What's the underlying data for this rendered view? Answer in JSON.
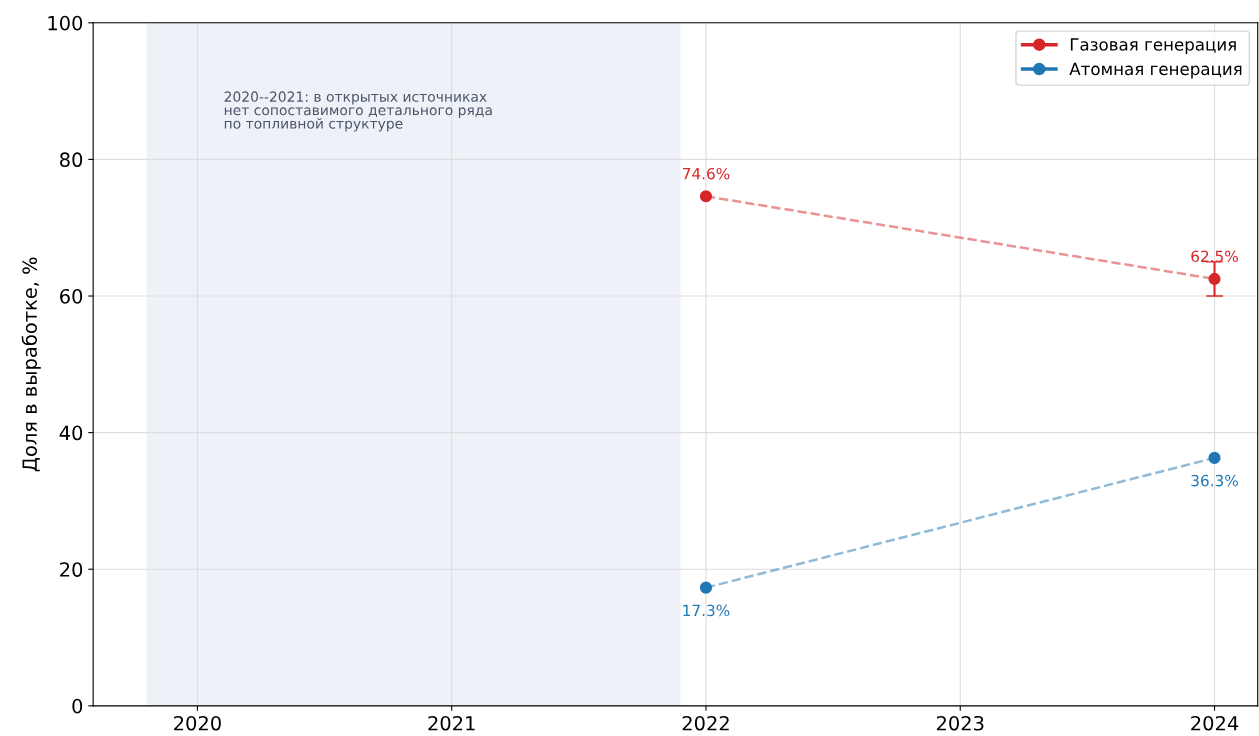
{
  "chart_data": {
    "type": "line",
    "ylabel": "Доля в выработке, %",
    "xlim": [
      2019.59,
      2024.17
    ],
    "xticks": [
      2020,
      2021,
      2022,
      2023,
      2024
    ],
    "ylim": [
      0,
      100
    ],
    "x": [
      2022,
      2024
    ],
    "yticks": [
      0,
      20,
      40,
      60,
      80,
      100
    ],
    "series": [
      {
        "name": "Газовая генерация",
        "color": "#d62728",
        "values": [
          74.6,
          62.5
        ],
        "errors": [
          null,
          [
            60,
            65
          ]
        ],
        "value_labels": [
          "74.6%",
          "62.5%"
        ]
      },
      {
        "name": "Атомная генерация",
        "color": "#1f77b4",
        "values": [
          17.3,
          36.3
        ],
        "value_labels": [
          "17.3%",
          "36.3%"
        ]
      }
    ],
    "bands": [
      {
        "axis": "x",
        "from": 2019.8,
        "to": 2021.9,
        "color": "#eef2f8"
      }
    ],
    "annotations": [
      "2020--2021: в открытых источниках\nнет сопоставимого детального ряда\nпо топливной структуре"
    ],
    "grid": true,
    "legend": "top right",
    "marker": "circle",
    "line_style": "dashed"
  }
}
